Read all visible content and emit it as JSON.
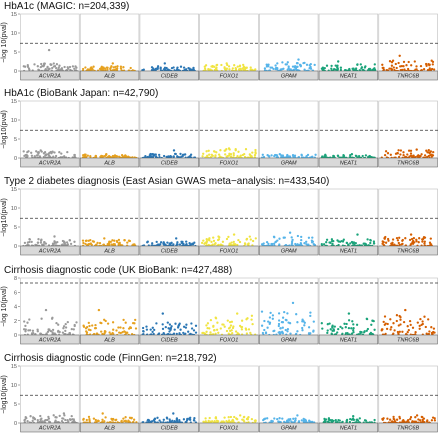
{
  "figure": {
    "ylabel": "−log 10(pval)",
    "genes": [
      "ACVR2A",
      "ALB",
      "CIDEB",
      "FOXO1",
      "GPAM",
      "NEAT1",
      "TNRC6B"
    ],
    "gene_colors": [
      "#9a9a9a",
      "#e6a11f",
      "#2a76b4",
      "#f0e442",
      "#56b4e9",
      "#1aa37a",
      "#d55e00"
    ],
    "threshold_line": "dashed at −log10(5e-8)"
  },
  "chart_data": [
    {
      "type": "scatter",
      "title": "HbA1c (MAGIC: n=204,339)",
      "ylabel": "−log 10(pval)",
      "ylim": [
        0,
        15
      ],
      "yticks": [
        0,
        5,
        10,
        15
      ],
      "threshold": 7.3,
      "categories": [
        "ACVR2A",
        "ALB",
        "CIDEB",
        "FOXO1",
        "GPAM",
        "NEAT1",
        "TNRC6B"
      ],
      "max_values": [
        5.5,
        2.0,
        2.0,
        2.0,
        3.0,
        2.5,
        4.0
      ],
      "typical_values": [
        1.2,
        0.7,
        0.7,
        0.9,
        1.3,
        1.0,
        1.6
      ]
    },
    {
      "type": "scatter",
      "title": "HbA1c (BioBank Japan: n=42,790)",
      "ylabel": "−log10(pval)",
      "ylim": [
        0,
        15
      ],
      "yticks": [
        0,
        5,
        10,
        15
      ],
      "threshold": 7.3,
      "categories": [
        "ACVR2A",
        "ALB",
        "CIDEB",
        "FOXO1",
        "GPAM",
        "NEAT1",
        "TNRC6B"
      ],
      "max_values": [
        2.0,
        1.0,
        2.0,
        2.5,
        1.0,
        1.0,
        2.2
      ],
      "typical_values": [
        1.5,
        0.5,
        0.6,
        1.5,
        0.5,
        0.5,
        1.2
      ]
    },
    {
      "type": "scatter",
      "title": "Type 2 diabetes diagnosis (East Asian GWAS meta−analysis: n=433,540)",
      "ylabel": "−log10(pval)",
      "ylim": [
        0,
        15
      ],
      "yticks": [
        0,
        5,
        10,
        15
      ],
      "threshold": 7.3,
      "categories": [
        "ACVR2A",
        "ALB",
        "CIDEB",
        "FOXO1",
        "GPAM",
        "NEAT1",
        "TNRC6B"
      ],
      "max_values": [
        2.5,
        2.0,
        2.0,
        3.0,
        3.5,
        3.0,
        3.0
      ],
      "typical_values": [
        1.0,
        0.9,
        0.7,
        1.5,
        1.5,
        1.0,
        1.5
      ]
    },
    {
      "type": "scatter",
      "title": "Cirrhosis diagnostic code (UK BioBank: n=427,488)",
      "ylabel": "−log 10(pval)",
      "ylim": [
        0,
        8
      ],
      "yticks": [
        0,
        2,
        4,
        6,
        8
      ],
      "threshold": 7.3,
      "categories": [
        "ACVR2A",
        "ALB",
        "CIDEB",
        "FOXO1",
        "GPAM",
        "NEAT1",
        "TNRC6B"
      ],
      "max_values": [
        3.5,
        3.5,
        3.0,
        3.0,
        4.5,
        3.0,
        3.5
      ],
      "typical_values": [
        1.4,
        1.2,
        1.0,
        1.5,
        2.0,
        1.3,
        1.6
      ]
    },
    {
      "type": "scatter",
      "title": "Cirrhosis diagnostic code (FinnGen: n=218,792)",
      "ylabel": "−log10(pval)",
      "ylim": [
        0,
        15
      ],
      "yticks": [
        0,
        5,
        10,
        15
      ],
      "threshold": 7.3,
      "categories": [
        "ACVR2A",
        "ALB",
        "CIDEB",
        "FOXO1",
        "GPAM",
        "NEAT1",
        "TNRC6B"
      ],
      "max_values": [
        2.5,
        2.5,
        2.5,
        2.0,
        2.0,
        1.8,
        2.0
      ],
      "typical_values": [
        1.2,
        0.9,
        0.8,
        0.9,
        0.7,
        0.7,
        0.9
      ]
    }
  ]
}
